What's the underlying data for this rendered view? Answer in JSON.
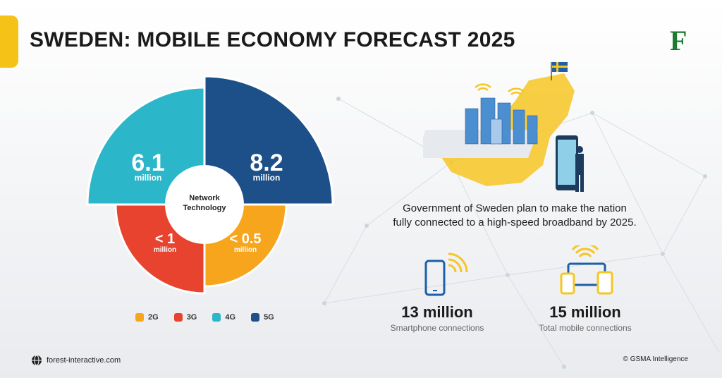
{
  "header": {
    "title": "SWEDEN: MOBILE ECONOMY FORECAST 2025",
    "logo_letter": "F"
  },
  "chart_data": {
    "type": "pie",
    "center_label_line1": "Network",
    "center_label_line2": "Technology",
    "slices": [
      {
        "name": "4G",
        "value_text": "6.1",
        "unit": "million",
        "value": 6.1,
        "color": "#2bb7c9"
      },
      {
        "name": "5G",
        "value_text": "8.2",
        "unit": "million",
        "value": 8.2,
        "color": "#1d4f88"
      },
      {
        "name": "3G",
        "value_text": "< 1",
        "unit": "million",
        "value": 1,
        "color": "#e8432e"
      },
      {
        "name": "2G",
        "value_text": "< 0.5",
        "unit": "million",
        "value": 0.5,
        "color": "#f7a51c"
      }
    ],
    "legend": [
      {
        "label": "2G",
        "color": "#f7a51c"
      },
      {
        "label": "3G",
        "color": "#e8432e"
      },
      {
        "label": "4G",
        "color": "#2bb7c9"
      },
      {
        "label": "5G",
        "color": "#1d4f88"
      }
    ]
  },
  "info": {
    "line1": "Government of Sweden plan to make the nation",
    "line2": "fully connected to a high-speed broadband by 2025."
  },
  "stats": [
    {
      "value": "13 million",
      "label": "Smartphone connections",
      "icon": "smartphone-wifi-icon"
    },
    {
      "value": "15 million",
      "label": "Total mobile connections",
      "icon": "devices-wifi-icon"
    }
  ],
  "footer": {
    "site": "forest-interactive.com",
    "copyright": "© GSMA Intelligence"
  }
}
